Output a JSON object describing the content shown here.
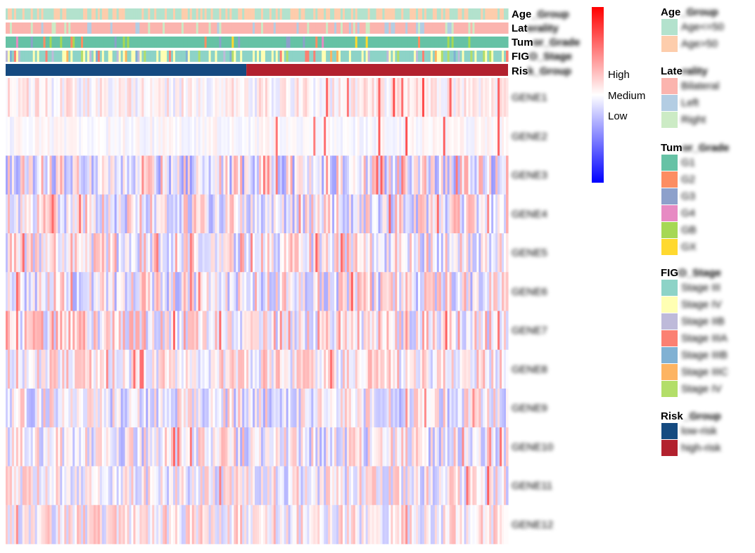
{
  "chart_data": {
    "type": "heatmap",
    "title": "",
    "n_samples": 240,
    "n_low": 115,
    "annotation_tracks": [
      {
        "name": "Age_Group",
        "label": "Age",
        "label_tail": "_Group"
      },
      {
        "name": "Laterality",
        "label": "Lat",
        "label_tail": "erality"
      },
      {
        "name": "Tumor_Grade",
        "label": "Tum",
        "label_tail": "or_Grade"
      },
      {
        "name": "FIGO_Stage",
        "label": "FIG",
        "label_tail": "O_Stage"
      },
      {
        "name": "Risk_Group",
        "label": "Ris",
        "label_tail": "k_Group"
      }
    ],
    "genes": [
      "GENE1",
      "GENE2",
      "GENE3",
      "GENE4",
      "GENE5",
      "GENE6",
      "GENE7",
      "GENE8",
      "GENE9",
      "GENE10",
      "GENE11",
      "GENE12"
    ],
    "color_scale": {
      "labels": [
        "High",
        "Medium",
        "Low"
      ],
      "colors": [
        "#ff0000",
        "#ffffff",
        "#0000ff"
      ],
      "range": [
        -1,
        1
      ]
    },
    "legends": [
      {
        "title": "Age",
        "title_tail": "_Group",
        "items": [
          {
            "color": "#b3e2cd",
            "label": "Age<=50"
          },
          {
            "color": "#fdcdac",
            "label": "Age>50"
          }
        ]
      },
      {
        "title": "Late",
        "title_tail": "rality",
        "items": [
          {
            "color": "#fbb4ae",
            "label": "Bilateral"
          },
          {
            "color": "#b3cde3",
            "label": "Left"
          },
          {
            "color": "#ccebc5",
            "label": "Right"
          }
        ]
      },
      {
        "title": "Tum",
        "title_tail": "or_Grade",
        "items": [
          {
            "color": "#66c2a5",
            "label": "G1"
          },
          {
            "color": "#fc8d62",
            "label": "G2"
          },
          {
            "color": "#8da0cb",
            "label": "G3"
          },
          {
            "color": "#e78ac3",
            "label": "G4"
          },
          {
            "color": "#a6d854",
            "label": "GB"
          },
          {
            "color": "#ffd92f",
            "label": "GX"
          }
        ]
      },
      {
        "title": "FIG",
        "title_tail": "O_Stage",
        "items": [
          {
            "color": "#8dd3c7",
            "label": "Stage III"
          },
          {
            "color": "#ffffb3",
            "label": "Stage IV"
          },
          {
            "color": "#bebada",
            "label": "Stage IIB"
          },
          {
            "color": "#fb8072",
            "label": "Stage IIIA"
          },
          {
            "color": "#80b1d3",
            "label": "Stage IIIB"
          },
          {
            "color": "#fdb462",
            "label": "Stage IIIC"
          },
          {
            "color": "#b3de69",
            "label": "Stage IV"
          }
        ]
      },
      {
        "title": "Risk",
        "title_tail": "_Group",
        "items": [
          {
            "color": "#154a80",
            "label": "low-risk"
          },
          {
            "color": "#b2212e",
            "label": "high-risk"
          }
        ]
      }
    ]
  }
}
